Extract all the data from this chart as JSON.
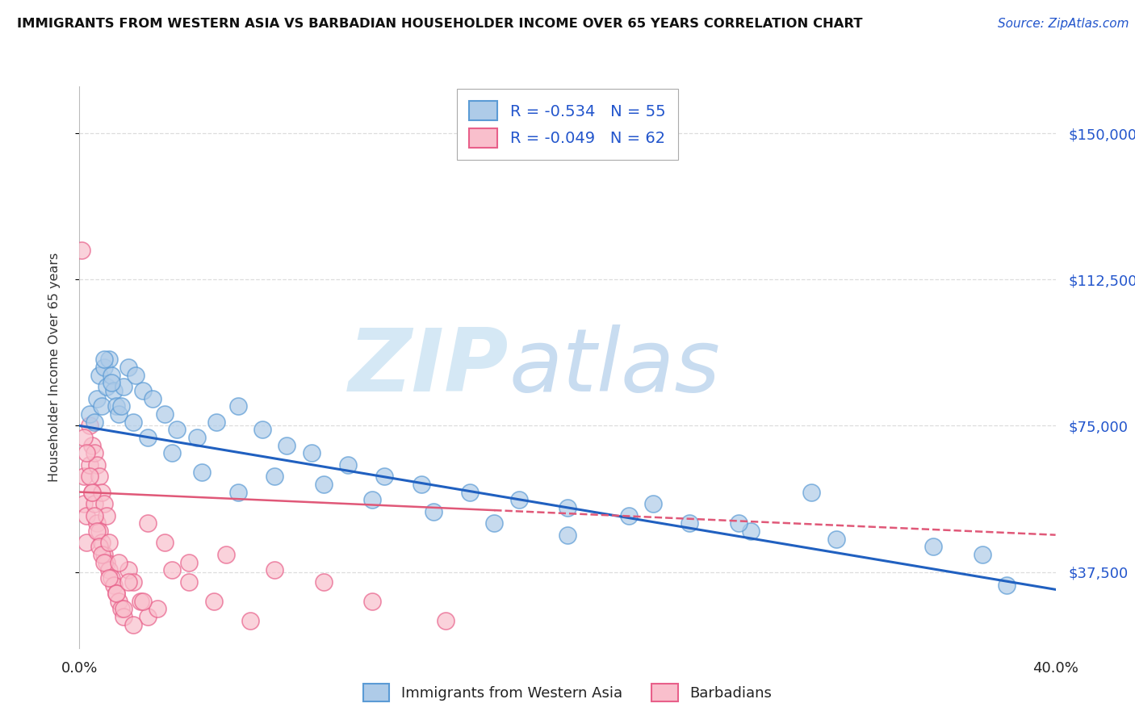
{
  "title": "IMMIGRANTS FROM WESTERN ASIA VS BARBADIAN HOUSEHOLDER INCOME OVER 65 YEARS CORRELATION CHART",
  "source": "Source: ZipAtlas.com",
  "ylabel": "Householder Income Over 65 years",
  "xtick_left": "0.0%",
  "xtick_right": "40.0%",
  "xlim": [
    0.0,
    0.4
  ],
  "ylim": [
    18000,
    162000
  ],
  "yticks": [
    37500,
    75000,
    112500,
    150000
  ],
  "ytick_labels": [
    "$37,500",
    "$75,000",
    "$112,500",
    "$150,000"
  ],
  "legend1_r": "-0.534",
  "legend1_n": "55",
  "legend2_r": "-0.049",
  "legend2_n": "62",
  "blue_dot_color": "#AECBE8",
  "blue_edge_color": "#5B9BD5",
  "pink_dot_color": "#F9BFCC",
  "pink_edge_color": "#E8608A",
  "blue_line_color": "#2060C0",
  "pink_line_color": "#E05878",
  "label_color": "#2255CC",
  "title_color": "#111111",
  "grid_color": "#DDDDDD",
  "watermark_color": "#D5E8F5",
  "bg_color": "#FFFFFF",
  "blue_x": [
    0.004,
    0.006,
    0.007,
    0.008,
    0.009,
    0.01,
    0.011,
    0.012,
    0.013,
    0.014,
    0.015,
    0.016,
    0.018,
    0.02,
    0.023,
    0.026,
    0.03,
    0.035,
    0.04,
    0.048,
    0.056,
    0.065,
    0.075,
    0.085,
    0.095,
    0.11,
    0.125,
    0.14,
    0.16,
    0.18,
    0.2,
    0.225,
    0.25,
    0.275,
    0.01,
    0.013,
    0.017,
    0.022,
    0.028,
    0.038,
    0.05,
    0.065,
    0.08,
    0.1,
    0.12,
    0.145,
    0.17,
    0.2,
    0.235,
    0.27,
    0.31,
    0.35,
    0.37,
    0.3,
    0.38
  ],
  "blue_y": [
    78000,
    76000,
    82000,
    88000,
    80000,
    90000,
    85000,
    92000,
    88000,
    84000,
    80000,
    78000,
    85000,
    90000,
    88000,
    84000,
    82000,
    78000,
    74000,
    72000,
    76000,
    80000,
    74000,
    70000,
    68000,
    65000,
    62000,
    60000,
    58000,
    56000,
    54000,
    52000,
    50000,
    48000,
    92000,
    86000,
    80000,
    76000,
    72000,
    68000,
    63000,
    58000,
    62000,
    60000,
    56000,
    53000,
    50000,
    47000,
    55000,
    50000,
    46000,
    44000,
    42000,
    58000,
    34000
  ],
  "pink_x": [
    0.001,
    0.002,
    0.002,
    0.003,
    0.003,
    0.004,
    0.004,
    0.005,
    0.005,
    0.006,
    0.006,
    0.007,
    0.007,
    0.008,
    0.008,
    0.009,
    0.009,
    0.01,
    0.01,
    0.011,
    0.011,
    0.012,
    0.013,
    0.014,
    0.015,
    0.016,
    0.017,
    0.018,
    0.02,
    0.022,
    0.025,
    0.028,
    0.032,
    0.038,
    0.045,
    0.055,
    0.07,
    0.002,
    0.003,
    0.004,
    0.005,
    0.006,
    0.007,
    0.008,
    0.009,
    0.01,
    0.012,
    0.015,
    0.018,
    0.022,
    0.028,
    0.035,
    0.045,
    0.06,
    0.08,
    0.1,
    0.12,
    0.15,
    0.012,
    0.016,
    0.02,
    0.026
  ],
  "pink_y": [
    120000,
    62000,
    55000,
    52000,
    45000,
    75000,
    65000,
    70000,
    58000,
    68000,
    55000,
    65000,
    50000,
    62000,
    48000,
    58000,
    45000,
    55000,
    42000,
    52000,
    40000,
    38000,
    36000,
    34000,
    32000,
    30000,
    28000,
    26000,
    38000,
    35000,
    30000,
    26000,
    28000,
    38000,
    35000,
    30000,
    25000,
    72000,
    68000,
    62000,
    58000,
    52000,
    48000,
    44000,
    42000,
    40000,
    36000,
    32000,
    28000,
    24000,
    50000,
    45000,
    40000,
    42000,
    38000,
    35000,
    30000,
    25000,
    45000,
    40000,
    35000,
    30000
  ]
}
